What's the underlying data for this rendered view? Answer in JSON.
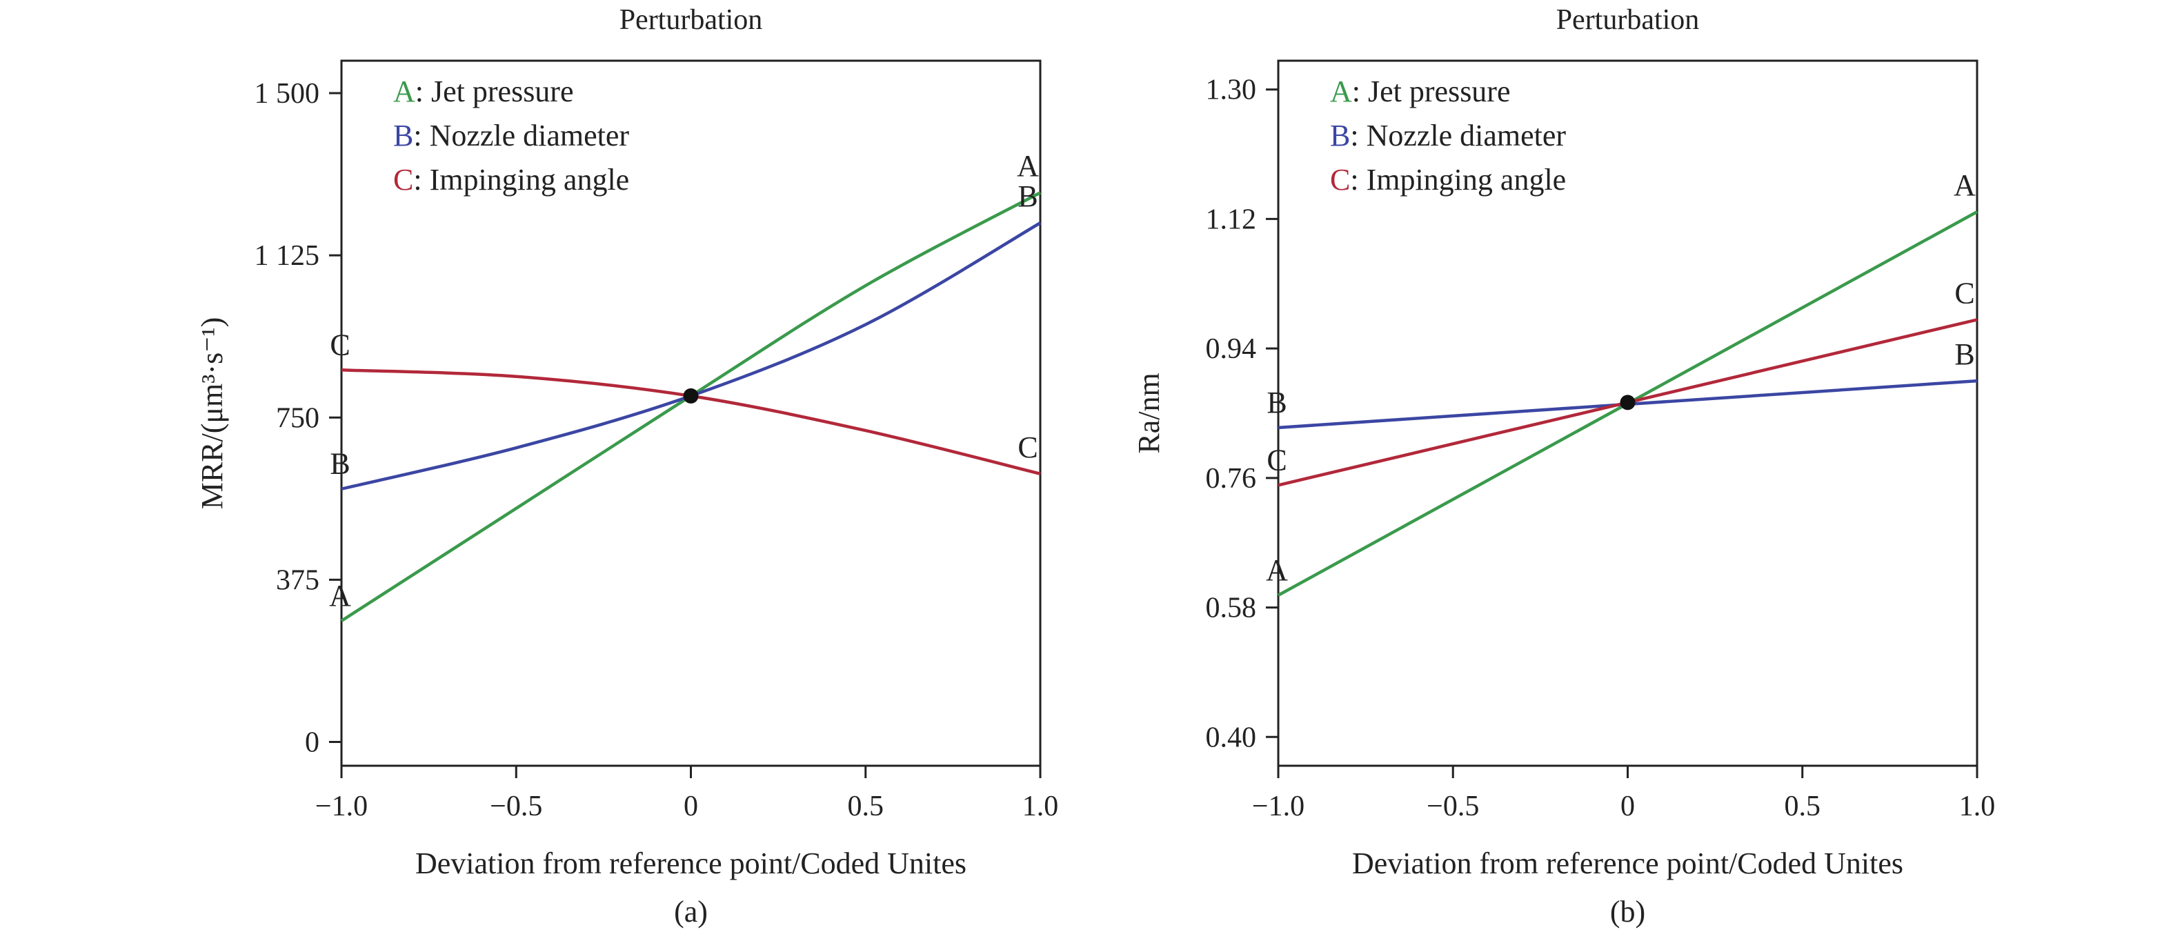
{
  "colors": {
    "A": "#3a9a4c",
    "B": "#3b46a3",
    "C": "#b2283a",
    "axis": "#222222",
    "point": "#111111"
  },
  "chart_data": [
    {
      "type": "line",
      "title": "Perturbation",
      "panel_label": "(a)",
      "xlabel": "Deviation from reference point/Coded Unites",
      "ylabel": "MRR/(μm³·s⁻¹)",
      "xlim": [
        -1.0,
        1.0
      ],
      "ylim": [
        -55,
        1575
      ],
      "xticks": [
        -1.0,
        -0.5,
        0,
        0.5,
        1.0
      ],
      "xtick_labels": [
        "−1.0",
        "−0.5",
        "0",
        "0.5",
        "1.0"
      ],
      "yticks": [
        0,
        375,
        750,
        1125,
        1500
      ],
      "ytick_labels": [
        "0",
        "375",
        "750",
        "1 125",
        "1 500"
      ],
      "reference_point": [
        0,
        800
      ],
      "legend": [
        {
          "key": "A",
          "text": ": Jet pressure"
        },
        {
          "key": "B",
          "text": ": Nozzle diameter"
        },
        {
          "key": "C",
          "text": ": Impinging angle"
        }
      ],
      "series": [
        {
          "name": "A",
          "x": [
            -1.0,
            -0.5,
            0,
            0.5,
            1.0
          ],
          "y": [
            280,
            540,
            800,
            1055,
            1270
          ]
        },
        {
          "name": "B",
          "x": [
            -1.0,
            -0.5,
            0,
            0.5,
            1.0
          ],
          "y": [
            585,
            680,
            800,
            965,
            1200
          ]
        },
        {
          "name": "C",
          "x": [
            -1.0,
            -0.5,
            0,
            0.5,
            1.0
          ],
          "y": [
            860,
            845,
            800,
            720,
            620
          ]
        }
      ]
    },
    {
      "type": "line",
      "title": "Perturbation",
      "panel_label": "(b)",
      "xlabel": "Deviation from reference point/Coded Unites",
      "ylabel": "Ra/nm",
      "xlim": [
        -1.0,
        1.0
      ],
      "ylim": [
        0.36,
        1.34
      ],
      "xticks": [
        -1.0,
        -0.5,
        0,
        0.5,
        1.0
      ],
      "xtick_labels": [
        "−1.0",
        "−0.5",
        "0",
        "0.5",
        "1.0"
      ],
      "yticks": [
        0.4,
        0.58,
        0.76,
        0.94,
        1.12,
        1.3
      ],
      "ytick_labels": [
        "0.40",
        "0.58",
        "0.76",
        "0.94",
        "1.12",
        "1.30"
      ],
      "reference_point": [
        0,
        0.865
      ],
      "legend": [
        {
          "key": "A",
          "text": ": Jet pressure"
        },
        {
          "key": "B",
          "text": ": Nozzle diameter"
        },
        {
          "key": "C",
          "text": ": Impinging angle"
        }
      ],
      "series": [
        {
          "name": "A",
          "x": [
            -1.0,
            1.0
          ],
          "y": [
            0.597,
            1.13
          ]
        },
        {
          "name": "B",
          "x": [
            -1.0,
            1.0
          ],
          "y": [
            0.83,
            0.895
          ]
        },
        {
          "name": "C",
          "x": [
            -1.0,
            1.0
          ],
          "y": [
            0.75,
            0.98
          ]
        }
      ]
    }
  ]
}
